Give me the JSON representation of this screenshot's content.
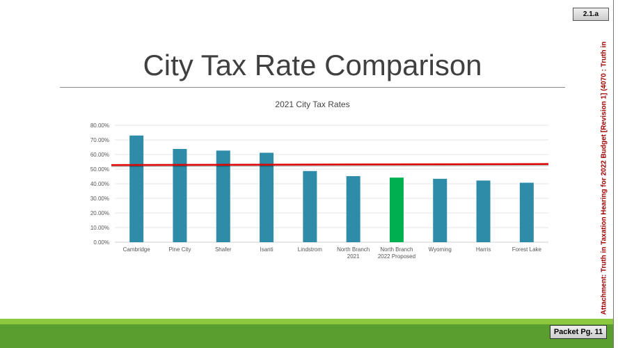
{
  "slide": {
    "title": "City Tax Rate Comparison",
    "badge": "2.1.a",
    "packet": "Packet Pg. 11",
    "side_note": "Attachment: Truth in Taxation Hearing for 2022 Budget [Revision 1]  (4070 : Truth in"
  },
  "chart_data": {
    "type": "bar",
    "title": "2021 City Tax Rates",
    "categories": [
      "Cambridge",
      "Pine City",
      "Shafer",
      "Isanti",
      "Lindstrom",
      "North Branch 2021",
      "North Branch 2022 Proposed",
      "Wyoming",
      "Harris",
      "Forest Lake"
    ],
    "category_lines": [
      [
        "Cambridge"
      ],
      [
        "Pine City"
      ],
      [
        "Shafer"
      ],
      [
        "Isanti"
      ],
      [
        "Lindstrom"
      ],
      [
        "North Branch",
        "2021"
      ],
      [
        "North Branch",
        "2022 Proposed"
      ],
      [
        "Wyoming"
      ],
      [
        "Harris"
      ],
      [
        "Forest Lake"
      ]
    ],
    "values": [
      73.0,
      63.8,
      62.7,
      61.2,
      48.7,
      45.2,
      44.2,
      43.4,
      42.2,
      40.7
    ],
    "bar_colors": [
      "#2e8ca8",
      "#2e8ca8",
      "#2e8ca8",
      "#2e8ca8",
      "#2e8ca8",
      "#2e8ca8",
      "#00b050",
      "#2e8ca8",
      "#2e8ca8",
      "#2e8ca8"
    ],
    "reference_line": {
      "start": 52.8,
      "end": 53.5,
      "color": "#e00000"
    },
    "ylim": [
      0,
      80
    ],
    "yticks": [
      "0.00%",
      "10.00%",
      "20.00%",
      "30.00%",
      "40.00%",
      "50.00%",
      "60.00%",
      "70.00%",
      "80.00%"
    ],
    "grid": true,
    "xlabel": "",
    "ylabel": ""
  }
}
